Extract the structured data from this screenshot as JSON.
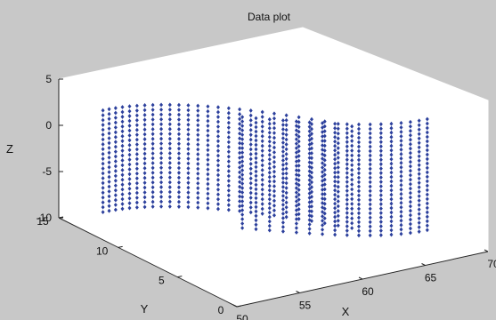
{
  "chart_data": {
    "type": "scatter3d",
    "title": "Data plot",
    "xlabel": "X",
    "ylabel": "Y",
    "zlabel": "Z",
    "xlim": [
      50,
      70
    ],
    "ylim": [
      0,
      15
    ],
    "zlim": [
      -10,
      5
    ],
    "xticks": [
      "50",
      "55",
      "60",
      "65",
      "70"
    ],
    "yticks": [
      "0",
      "5",
      "10",
      "15"
    ],
    "zticks": [
      "-10",
      "-5",
      "0",
      "5"
    ],
    "grid": false,
    "marker_color": "#2b3f9c",
    "series": [
      {
        "surface": "curved wall",
        "x_range": [
          50,
          62
        ],
        "y_range": [
          3,
          12
        ],
        "z_range": [
          -7,
          4
        ],
        "columns": 26,
        "rows": 22
      },
      {
        "surface": "curved wall",
        "x_range": [
          58,
          68
        ],
        "y_range": [
          3,
          8
        ],
        "z_range": [
          -9,
          3
        ],
        "columns": 17,
        "rows": 26
      }
    ]
  }
}
